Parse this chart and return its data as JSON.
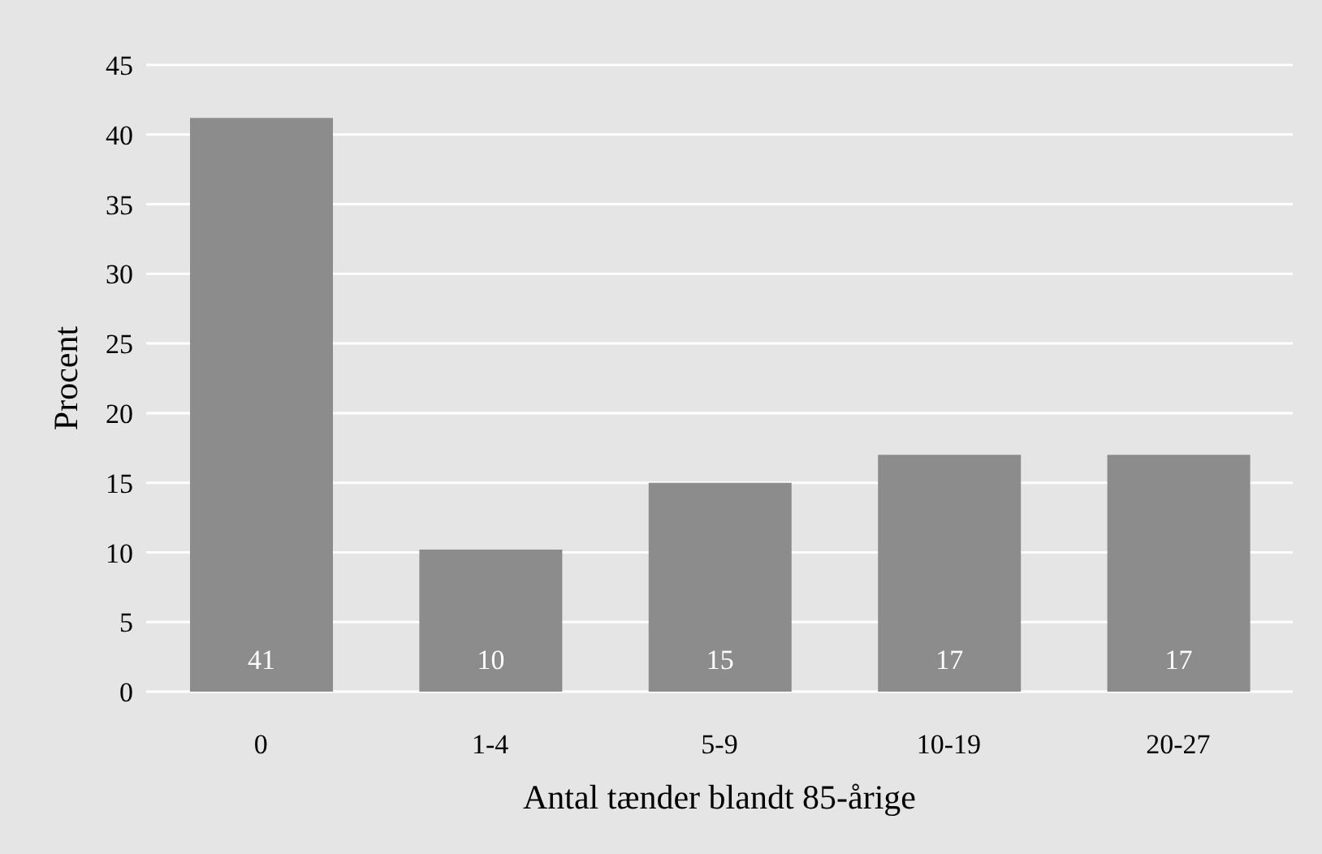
{
  "chart_data": {
    "type": "bar",
    "xlabel": "Antal tænder blandt 85-årige",
    "ylabel": "Procent",
    "categories": [
      "0",
      "1-4",
      "5-9",
      "10-19",
      "20-27"
    ],
    "values": [
      41.2,
      10.2,
      15,
      17,
      17
    ],
    "value_labels": [
      "41",
      "10",
      "15",
      "17",
      "17"
    ],
    "color": "#8c8c8c",
    "ylim": [
      0,
      45
    ],
    "yticks": [
      0,
      5,
      10,
      15,
      20,
      25,
      30,
      35,
      40,
      45
    ],
    "grid": "y"
  }
}
